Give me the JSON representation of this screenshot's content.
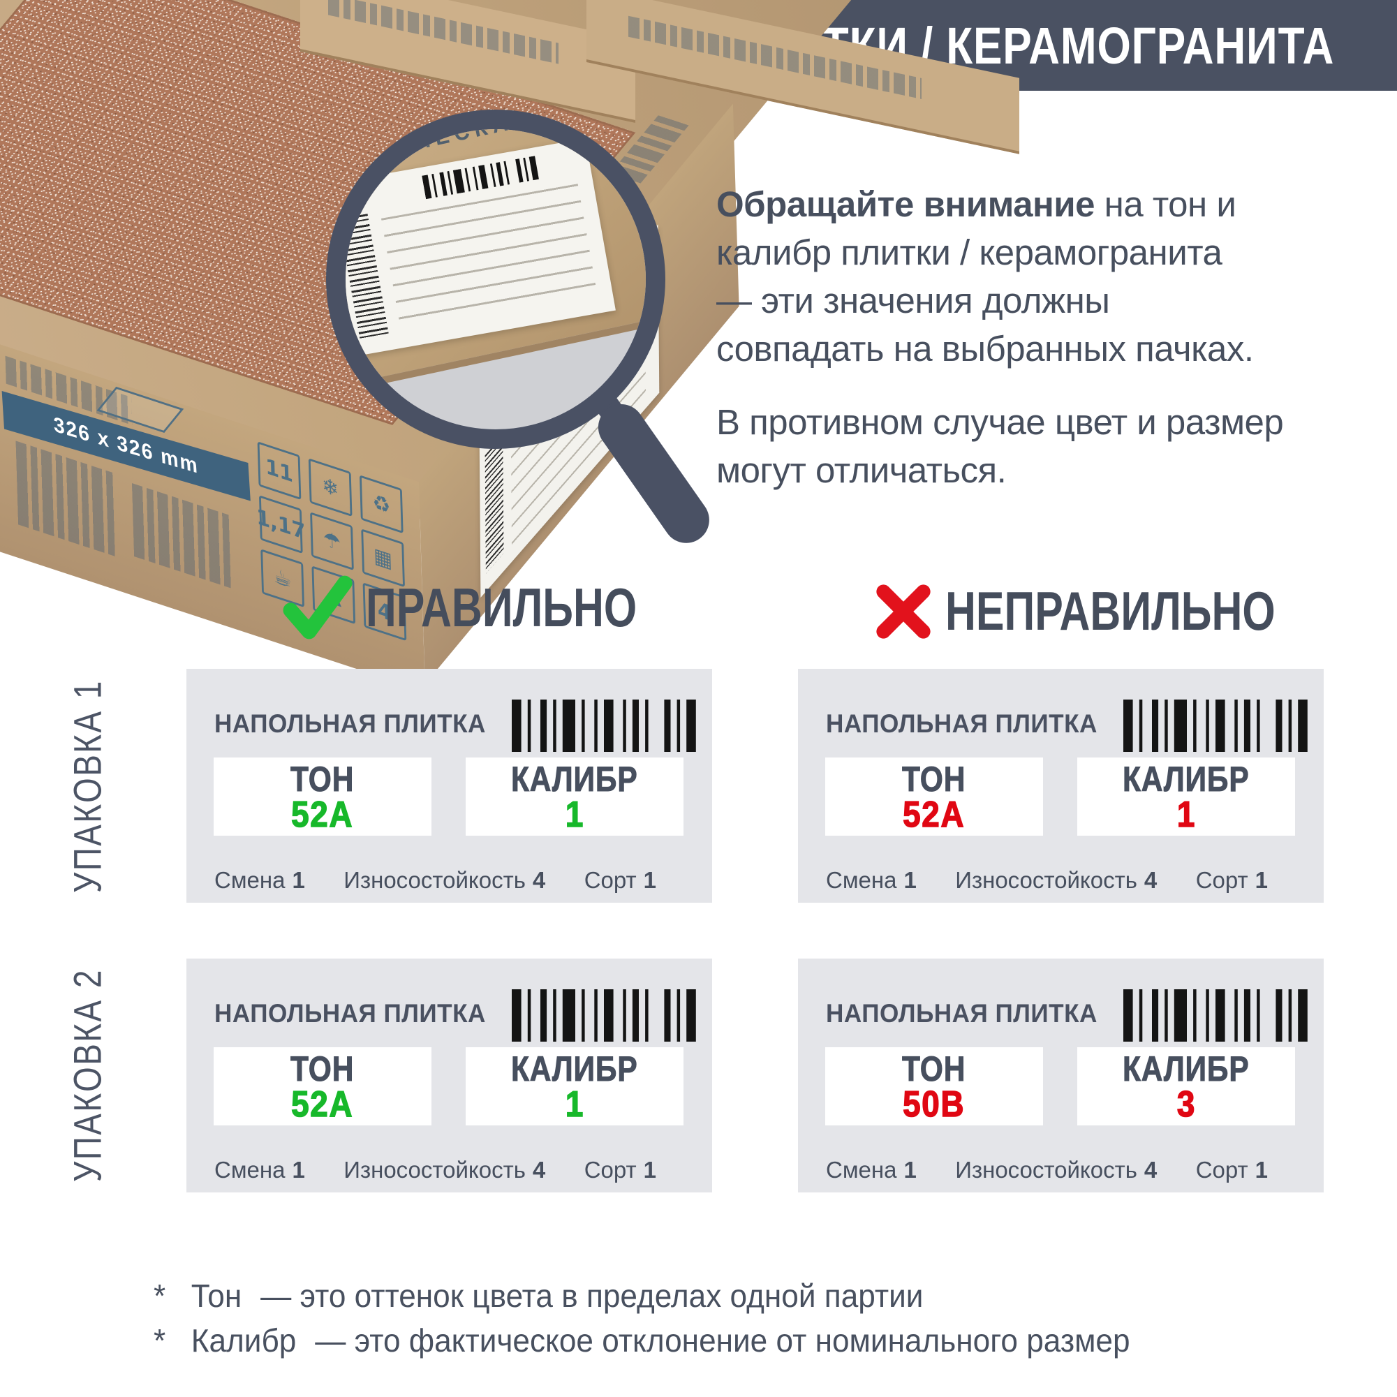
{
  "header": {
    "title": "ВЫБОР ПЛИТКИ / КЕРАМОГРАНИТА"
  },
  "photo": {
    "lens_label_title": "КЕРАМИЧЕСКАЯ ПЛИТКА",
    "box_size": "326 x 326 mm",
    "icon_cells": [
      "11",
      "❄",
      "♻",
      "1,17",
      "☂",
      "▦",
      "☕",
      "▲",
      "4"
    ]
  },
  "intro": {
    "p1_bold": "Обращайте внимание",
    "p1_lines": [
      " на тон и",
      "калибр плитки / керамогранита",
      "— эти значения должны",
      "совпадать на выбранных пачках."
    ],
    "p2_lines": [
      "В противном случае цвет и размер",
      "могут отличаться."
    ]
  },
  "columns": {
    "correct": "ПРАВИЛЬНО",
    "incorrect": "НЕПРАВИЛЬНО"
  },
  "packs": [
    "УПАКОВКА 1",
    "УПАКОВКА 2"
  ],
  "card_common": {
    "product": "НАПОЛЬНАЯ ПЛИТКА",
    "tone_label": "ТОН",
    "caliber_label": "КАЛИБР",
    "shift_label": "Смена",
    "wear_label": "Износостойкость",
    "grade_label": "Сорт"
  },
  "cards": [
    {
      "pack": "УПАКОВКА 1",
      "column": "correct",
      "tone": "52А",
      "caliber": "1",
      "shift": "1",
      "wear": "4",
      "grade": "1",
      "status": "good"
    },
    {
      "pack": "УПАКОВКА 1",
      "column": "incorrect",
      "tone": "52А",
      "caliber": "1",
      "shift": "1",
      "wear": "4",
      "grade": "1",
      "status": "bad"
    },
    {
      "pack": "УПАКОВКА 2",
      "column": "correct",
      "tone": "52А",
      "caliber": "1",
      "shift": "1",
      "wear": "4",
      "grade": "1",
      "status": "good"
    },
    {
      "pack": "УПАКОВКА 2",
      "column": "incorrect",
      "tone": "50В",
      "caliber": "3",
      "shift": "1",
      "wear": "4",
      "grade": "1",
      "status": "bad"
    }
  ],
  "footnotes": [
    {
      "marker": "*",
      "term": "Тон",
      "text": "— это оттенок цвета в пределах одной партии"
    },
    {
      "marker": "*",
      "term": "Калибр",
      "text": "— это фактическое отклонение от номинального размер"
    }
  ],
  "colors": {
    "slate": "#4a5162",
    "green": "#17b82a",
    "red": "#e00713",
    "card_bg": "#e4e5e9"
  }
}
